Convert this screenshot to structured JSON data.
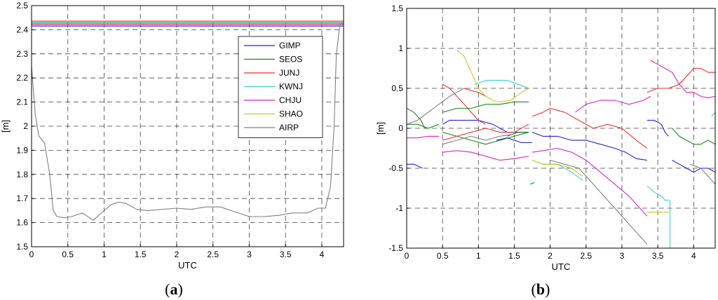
{
  "colors": {
    "GIMP": "#1f1fe6",
    "SEOS": "#1a8a1a",
    "JUNJ": "#f03030",
    "KWNJ": "#36d3d3",
    "CHJU": "#e020c8",
    "SHAO": "#c8c81e",
    "AIRP": "#808080"
  },
  "chart_data": [
    {
      "type": "line",
      "caption_letter": "a",
      "xlabel": "UTC",
      "ylabel": "[m]",
      "xlim": [
        0,
        4.3
      ],
      "ylim": [
        1.5,
        2.5
      ],
      "xticks": [
        "0",
        "0.5",
        "1",
        "1.5",
        "2",
        "2.5",
        "3",
        "3.5",
        "4"
      ],
      "yticks": [
        "1.5",
        "1.6",
        "1.7",
        "1.8",
        "1.9",
        "2",
        "2.1",
        "2.2",
        "2.3",
        "2.4",
        "2.5"
      ],
      "grid": true,
      "legend_position": "top-right",
      "legend": [
        "GIMP",
        "SEOS",
        "JUNJ",
        "KWNJ",
        "CHJU",
        "SHAO",
        "AIRP"
      ],
      "series": [
        {
          "name": "GIMP",
          "x": [
            0,
            4.3
          ],
          "y": [
            2.415,
            2.415
          ]
        },
        {
          "name": "SEOS",
          "x": [
            0,
            4.3
          ],
          "y": [
            2.427,
            2.427
          ]
        },
        {
          "name": "JUNJ",
          "x": [
            0,
            4.3
          ],
          "y": [
            2.436,
            2.436
          ]
        },
        {
          "name": "KWNJ",
          "x": [
            0,
            4.3
          ],
          "y": [
            2.432,
            2.432
          ]
        },
        {
          "name": "CHJU",
          "x": [
            0,
            4.3
          ],
          "y": [
            2.421,
            2.421
          ]
        },
        {
          "name": "SHAO",
          "x": [
            0,
            4.3
          ],
          "y": [
            2.425,
            2.425
          ]
        },
        {
          "name": "AIRP",
          "x": [
            0,
            0.05,
            0.1,
            0.18,
            0.25,
            0.3,
            0.35,
            0.45,
            0.55,
            0.7,
            0.85,
            1.0,
            1.1,
            1.2,
            1.3,
            1.45,
            1.6,
            1.8,
            2.0,
            2.2,
            2.4,
            2.6,
            2.8,
            3.0,
            3.2,
            3.4,
            3.6,
            3.8,
            3.95,
            4.05,
            4.12,
            4.17,
            4.2,
            4.25,
            4.3
          ],
          "y": [
            2.25,
            2.05,
            1.96,
            1.93,
            1.8,
            1.65,
            1.625,
            1.62,
            1.625,
            1.64,
            1.61,
            1.65,
            1.675,
            1.685,
            1.68,
            1.655,
            1.65,
            1.655,
            1.66,
            1.655,
            1.665,
            1.665,
            1.645,
            1.625,
            1.625,
            1.63,
            1.64,
            1.64,
            1.66,
            1.66,
            1.75,
            2.0,
            2.3,
            2.42,
            2.43
          ]
        }
      ]
    },
    {
      "type": "line",
      "caption_letter": "b",
      "xlabel": "UTC",
      "ylabel": "[m]",
      "xlim": [
        0,
        4.3
      ],
      "ylim": [
        -1.5,
        1.5
      ],
      "xticks": [
        "0",
        "0.5",
        "1",
        "1.5",
        "2",
        "2.5",
        "3",
        "3.5",
        "4"
      ],
      "yticks": [
        "-1.5",
        "-1",
        "-0.5",
        "0",
        "0.5",
        "1",
        "1.5"
      ],
      "grid": true,
      "series": [
        {
          "name": "GIMP",
          "segments": [
            {
              "x": [
                0,
                0.1,
                0.22
              ],
              "y": [
                -0.45,
                -0.45,
                -0.5
              ]
            },
            {
              "x": [
                0.5,
                0.6,
                0.8,
                1.0,
                1.2,
                1.4,
                1.7
              ],
              "y": [
                0.05,
                0.1,
                0.1,
                0.1,
                0.05,
                -0.05,
                -0.05
              ]
            },
            {
              "x": [
                1.25,
                1.4,
                1.6,
                1.75
              ],
              "y": [
                -0.15,
                -0.12,
                -0.18,
                -0.18
              ]
            },
            {
              "x": [
                1.75,
                1.9,
                2.1,
                2.3,
                2.5,
                2.7,
                2.9,
                3.05,
                3.2,
                3.35
              ],
              "y": [
                -0.05,
                -0.1,
                -0.1,
                -0.15,
                -0.15,
                -0.2,
                -0.25,
                -0.3,
                -0.38,
                -0.4
              ]
            },
            {
              "x": [
                3.35,
                3.45,
                3.55,
                3.6,
                3.65
              ],
              "y": [
                0.1,
                0.1,
                0.05,
                -0.05,
                -0.1
              ]
            },
            {
              "x": [
                3.7,
                3.8,
                3.9,
                4.0,
                4.1,
                4.2,
                4.3
              ],
              "y": [
                -0.4,
                -0.45,
                -0.5,
                -0.55,
                -0.5,
                -0.5,
                -0.55
              ]
            }
          ]
        },
        {
          "name": "SEOS",
          "segments": [
            {
              "x": [
                0,
                0.1,
                0.2,
                0.25,
                0.3
              ],
              "y": [
                0.25,
                0.2,
                0.1,
                0.0,
                0.0
              ]
            },
            {
              "x": [
                0,
                0.15,
                0.3,
                0.45
              ],
              "y": [
                0.05,
                0.05,
                0.0,
                0.05
              ]
            },
            {
              "x": [
                0.5,
                0.7,
                0.9,
                1.1,
                1.3,
                1.5,
                1.7
              ],
              "y": [
                0.2,
                0.25,
                0.25,
                0.3,
                0.3,
                0.33,
                0.33
              ]
            },
            {
              "x": [
                0.5,
                0.7,
                0.9,
                1.1,
                1.3,
                1.5,
                1.7
              ],
              "y": [
                -0.05,
                -0.1,
                -0.15,
                -0.2,
                -0.15,
                -0.1,
                -0.05
              ]
            },
            {
              "x": [
                1.4,
                1.55,
                1.7
              ],
              "y": [
                -0.1,
                -0.05,
                -0.05
              ]
            },
            {
              "x": [
                1.72,
                1.78
              ],
              "y": [
                -0.7,
                -0.68
              ]
            },
            {
              "x": [
                3.7,
                3.8,
                3.9,
                4.0,
                4.1,
                4.2,
                4.3
              ],
              "y": [
                0.0,
                -0.1,
                -0.15,
                -0.2,
                -0.2,
                -0.15,
                -0.2
              ]
            }
          ]
        },
        {
          "name": "JUNJ",
          "segments": [
            {
              "x": [
                0.5,
                0.6,
                0.7,
                0.8,
                0.9,
                1.0,
                1.1
              ],
              "y": [
                0.55,
                0.5,
                0.4,
                0.3,
                0.2,
                0.1,
                0.05
              ]
            },
            {
              "x": [
                0.5,
                0.7,
                0.9,
                1.1,
                1.3,
                1.5,
                1.7
              ],
              "y": [
                -0.15,
                -0.1,
                -0.05,
                0.0,
                -0.05,
                -0.05,
                0.05
              ]
            },
            {
              "x": [
                0.8,
                0.9,
                1.0,
                1.1
              ],
              "y": [
                0.5,
                0.47,
                0.45,
                0.4
              ]
            },
            {
              "x": [
                1.75,
                1.9,
                2.0,
                2.2,
                2.4,
                2.6,
                2.8,
                3.0,
                3.2,
                3.35
              ],
              "y": [
                0.15,
                0.2,
                0.25,
                0.2,
                0.1,
                0.0,
                0.05,
                0.0,
                -0.15,
                -0.25
              ]
            },
            {
              "x": [
                3.35,
                3.5,
                3.65,
                3.8,
                3.9,
                4.0,
                4.1,
                4.2,
                4.3
              ],
              "y": [
                0.45,
                0.5,
                0.5,
                0.55,
                0.65,
                0.75,
                0.75,
                0.7,
                0.7
              ]
            }
          ]
        },
        {
          "name": "KWNJ",
          "segments": [
            {
              "x": [
                0.95,
                1.1,
                1.25,
                1.4,
                1.55,
                1.7
              ],
              "y": [
                0.55,
                0.6,
                0.6,
                0.6,
                0.55,
                0.5
              ]
            },
            {
              "x": [
                1.75,
                1.9,
                2.1,
                2.3,
                2.45
              ],
              "y": [
                -0.4,
                -0.45,
                -0.45,
                -0.55,
                -0.65
              ]
            },
            {
              "x": [
                3.35,
                3.45,
                3.55,
                3.6,
                3.66
              ],
              "y": [
                -0.72,
                -0.8,
                -0.85,
                -0.9,
                -0.9
              ]
            },
            {
              "x": [
                3.67,
                3.67
              ],
              "y": [
                -0.9,
                -1.5
              ]
            },
            {
              "x": [
                4.25,
                4.3
              ],
              "y": [
                0.15,
                0.2
              ]
            }
          ]
        },
        {
          "name": "CHJU",
          "segments": [
            {
              "x": [
                0,
                0.15,
                0.3,
                0.45
              ],
              "y": [
                -0.12,
                -0.12,
                -0.1,
                -0.1
              ]
            },
            {
              "x": [
                0.5,
                0.7,
                0.9,
                1.1,
                1.3,
                1.5,
                1.7
              ],
              "y": [
                -0.3,
                -0.28,
                -0.3,
                -0.35,
                -0.4,
                -0.38,
                -0.35
              ]
            },
            {
              "x": [
                1.75,
                1.9,
                2.1,
                2.3,
                2.5,
                2.7,
                2.9,
                3.1,
                3.3,
                3.35
              ],
              "y": [
                -0.3,
                -0.28,
                -0.25,
                -0.3,
                -0.4,
                -0.55,
                -0.7,
                -0.85,
                -1.05,
                -1.1
              ]
            },
            {
              "x": [
                2.35,
                2.5,
                2.7,
                2.9,
                3.1,
                3.3,
                3.4
              ],
              "y": [
                0.2,
                0.3,
                0.35,
                0.35,
                0.3,
                0.35,
                0.4
              ]
            },
            {
              "x": [
                3.4,
                3.5,
                3.6,
                3.7,
                3.8,
                3.9,
                4.0,
                4.1,
                4.2,
                4.3
              ],
              "y": [
                0.85,
                0.8,
                0.75,
                0.7,
                0.55,
                0.45,
                0.45,
                0.4,
                0.38,
                0.4
              ]
            }
          ]
        },
        {
          "name": "SHAO",
          "segments": [
            {
              "x": [
                0.7,
                0.8,
                0.9,
                1.0,
                1.1,
                1.2,
                1.3,
                1.45,
                1.6,
                1.7
              ],
              "y": [
                0.98,
                0.9,
                0.7,
                0.5,
                0.4,
                0.35,
                0.33,
                0.35,
                0.45,
                0.5
              ]
            },
            {
              "x": [
                1.75,
                1.9,
                2.1,
                2.3,
                2.45
              ],
              "y": [
                -0.4,
                -0.45,
                -0.45,
                -0.5,
                -0.6
              ]
            },
            {
              "x": [
                3.35,
                3.45,
                3.55,
                3.65
              ],
              "y": [
                -1.05,
                -1.05,
                -1.05,
                -1.05
              ]
            }
          ]
        },
        {
          "name": "AIRP",
          "segments": [
            {
              "x": [
                0,
                0.15,
                0.3,
                0.45,
                0.6,
                0.7,
                0.8
              ],
              "y": [
                0.05,
                0.1,
                0.2,
                0.3,
                0.4,
                0.45,
                0.5
              ]
            },
            {
              "x": [
                0.5,
                0.7,
                0.9,
                1.1,
                1.3,
                1.45
              ],
              "y": [
                -0.2,
                -0.15,
                -0.1,
                -0.15,
                -0.1,
                -0.08
              ]
            },
            {
              "x": [
                2.0,
                2.2,
                2.4,
                2.6,
                2.8,
                3.0,
                3.2,
                3.35
              ],
              "y": [
                -0.4,
                -0.45,
                -0.5,
                -0.7,
                -0.9,
                -1.1,
                -1.3,
                -1.45
              ]
            },
            {
              "x": [
                3.95,
                4.1,
                4.2,
                4.3
              ],
              "y": [
                -0.45,
                -0.5,
                -0.6,
                -0.7
              ]
            }
          ]
        }
      ]
    }
  ]
}
